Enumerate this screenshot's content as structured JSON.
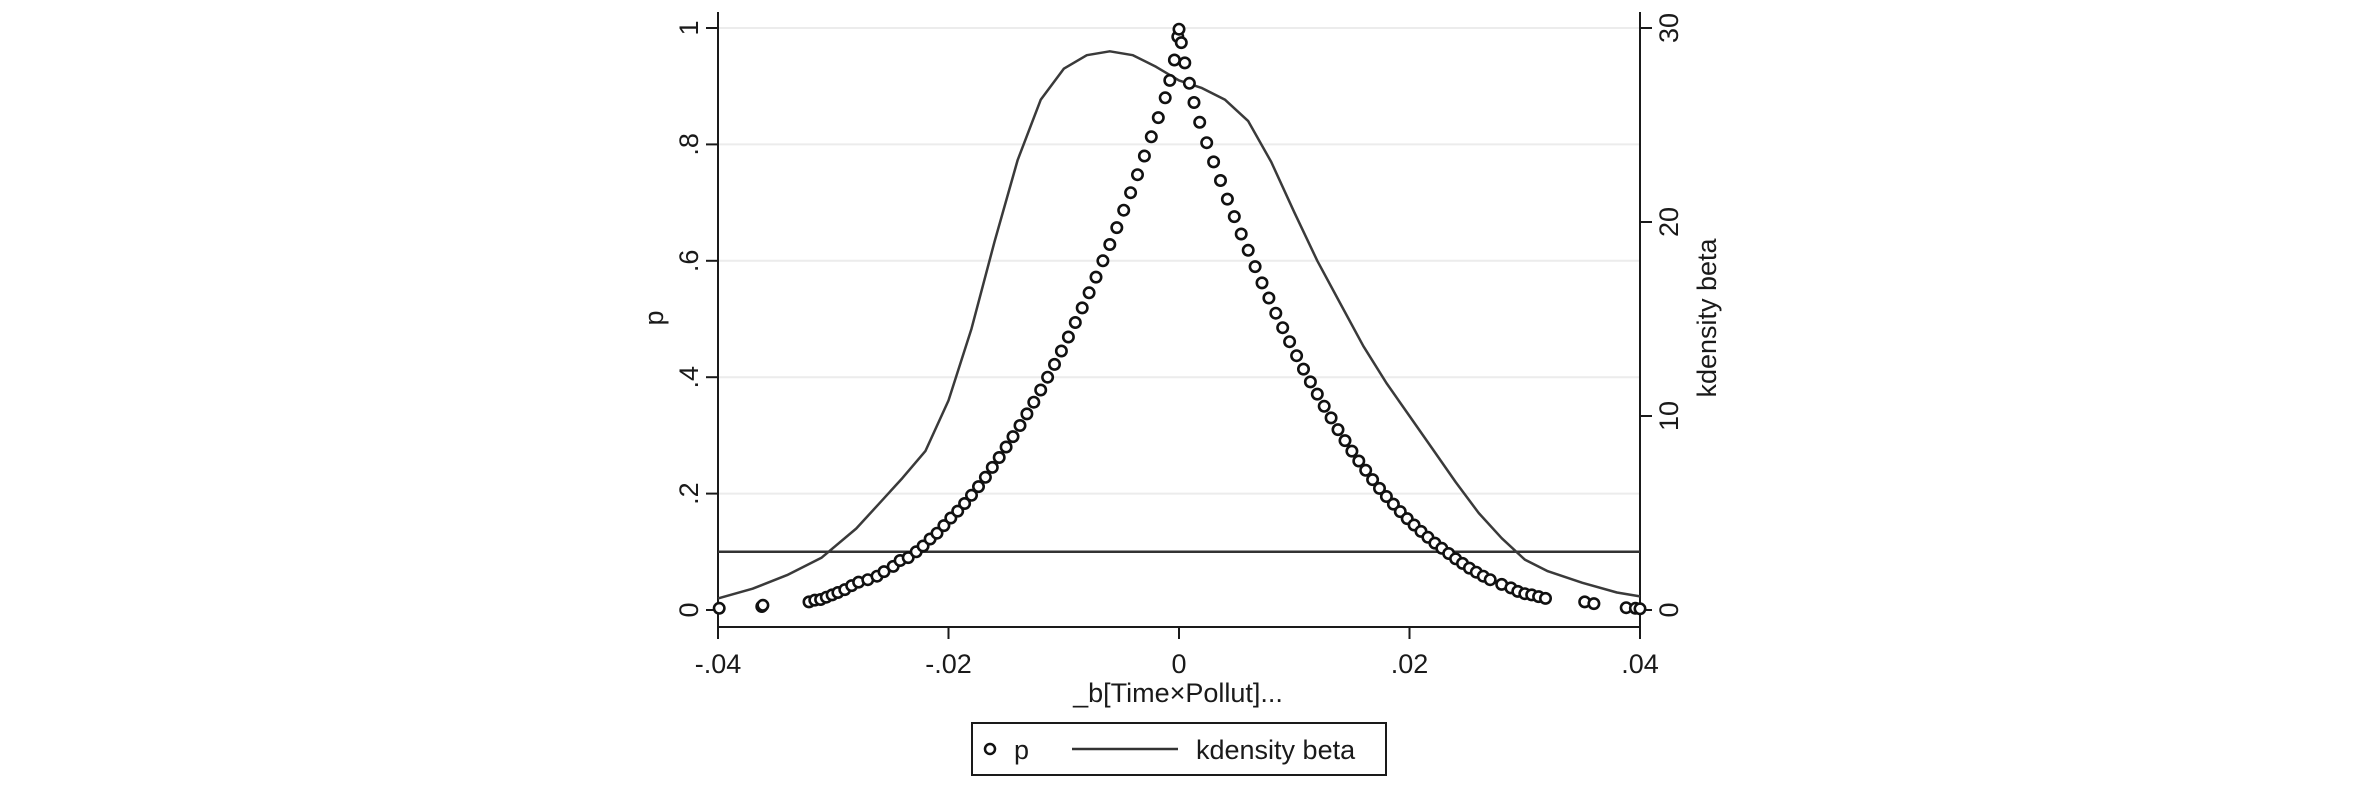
{
  "chart_data": {
    "type": "scatter",
    "xlabel": "_b[Time×Pollut]...",
    "ylabel_left": "p",
    "ylabel_right": "kdensity beta",
    "xlim": [
      -0.04,
      0.04
    ],
    "ylim_left": [
      0,
      1
    ],
    "ylim_right": [
      0,
      30
    ],
    "x_ticks": [
      {
        "value": -0.04,
        "label": "-.04"
      },
      {
        "value": -0.02,
        "label": "-.02"
      },
      {
        "value": 0,
        "label": "0"
      },
      {
        "value": 0.02,
        "label": ".02"
      },
      {
        "value": 0.04,
        "label": ".04"
      }
    ],
    "y_left_ticks": [
      {
        "value": 0,
        "label": "0"
      },
      {
        "value": 0.2,
        "label": ".2"
      },
      {
        "value": 0.4,
        "label": ".4"
      },
      {
        "value": 0.6,
        "label": ".6"
      },
      {
        "value": 0.8,
        "label": ".8"
      },
      {
        "value": 1,
        "label": "1"
      }
    ],
    "y_right_ticks": [
      {
        "value": 0,
        "label": "0"
      },
      {
        "value": 10,
        "label": "10"
      },
      {
        "value": 20,
        "label": "20"
      },
      {
        "value": 30,
        "label": "30"
      }
    ],
    "grid": "horizontal",
    "reference_line": {
      "axis": "y_left",
      "value": 0.1
    },
    "legend": {
      "placement": "bottom",
      "entries": [
        {
          "label": "p",
          "marker": "hollow-circle"
        },
        {
          "label": "kdensity beta",
          "marker": "line"
        }
      ]
    },
    "series": [
      {
        "name": "p",
        "kind": "scatter",
        "axis": "left",
        "points": [
          [
            -0.0399,
            0.003
          ],
          [
            -0.0362,
            0.006
          ],
          [
            -0.0361,
            0.008
          ],
          [
            -0.0321,
            0.014
          ],
          [
            -0.0316,
            0.017
          ],
          [
            -0.0311,
            0.018
          ],
          [
            -0.0306,
            0.022
          ],
          [
            -0.0301,
            0.026
          ],
          [
            -0.0296,
            0.03
          ],
          [
            -0.029,
            0.035
          ],
          [
            -0.0284,
            0.042
          ],
          [
            -0.0278,
            0.048
          ],
          [
            -0.027,
            0.052
          ],
          [
            -0.0262,
            0.058
          ],
          [
            -0.0256,
            0.066
          ],
          [
            -0.0248,
            0.075
          ],
          [
            -0.0242,
            0.085
          ],
          [
            -0.0235,
            0.09
          ],
          [
            -0.0228,
            0.1
          ],
          [
            -0.0222,
            0.11
          ],
          [
            -0.0216,
            0.122
          ],
          [
            -0.021,
            0.132
          ],
          [
            -0.0204,
            0.145
          ],
          [
            -0.0198,
            0.158
          ],
          [
            -0.0192,
            0.17
          ],
          [
            -0.0186,
            0.183
          ],
          [
            -0.018,
            0.197
          ],
          [
            -0.0174,
            0.212
          ],
          [
            -0.0168,
            0.228
          ],
          [
            -0.0162,
            0.245
          ],
          [
            -0.0156,
            0.262
          ],
          [
            -0.015,
            0.28
          ],
          [
            -0.0144,
            0.298
          ],
          [
            -0.0138,
            0.317
          ],
          [
            -0.0132,
            0.337
          ],
          [
            -0.0126,
            0.357
          ],
          [
            -0.012,
            0.378
          ],
          [
            -0.0114,
            0.4
          ],
          [
            -0.0108,
            0.422
          ],
          [
            -0.0102,
            0.445
          ],
          [
            -0.0096,
            0.469
          ],
          [
            -0.009,
            0.494
          ],
          [
            -0.0084,
            0.519
          ],
          [
            -0.0078,
            0.545
          ],
          [
            -0.0072,
            0.572
          ],
          [
            -0.0066,
            0.6
          ],
          [
            -0.006,
            0.628
          ],
          [
            -0.0054,
            0.657
          ],
          [
            -0.0048,
            0.687
          ],
          [
            -0.0042,
            0.717
          ],
          [
            -0.0036,
            0.748
          ],
          [
            -0.003,
            0.78
          ],
          [
            -0.0024,
            0.813
          ],
          [
            -0.0018,
            0.846
          ],
          [
            -0.0012,
            0.88
          ],
          [
            -0.0008,
            0.91
          ],
          [
            -0.0004,
            0.945
          ],
          [
            -0.0001,
            0.985
          ],
          [
            0.0,
            0.998
          ],
          [
            0.0002,
            0.975
          ],
          [
            0.0005,
            0.94
          ],
          [
            0.0009,
            0.905
          ],
          [
            0.0013,
            0.872
          ],
          [
            0.0018,
            0.838
          ],
          [
            0.0024,
            0.803
          ],
          [
            0.003,
            0.77
          ],
          [
            0.0036,
            0.738
          ],
          [
            0.0042,
            0.706
          ],
          [
            0.0048,
            0.676
          ],
          [
            0.0054,
            0.646
          ],
          [
            0.006,
            0.618
          ],
          [
            0.0066,
            0.59
          ],
          [
            0.0072,
            0.562
          ],
          [
            0.0078,
            0.536
          ],
          [
            0.0084,
            0.51
          ],
          [
            0.009,
            0.485
          ],
          [
            0.0096,
            0.461
          ],
          [
            0.0102,
            0.437
          ],
          [
            0.0108,
            0.414
          ],
          [
            0.0114,
            0.392
          ],
          [
            0.012,
            0.371
          ],
          [
            0.0126,
            0.35
          ],
          [
            0.0132,
            0.33
          ],
          [
            0.0138,
            0.31
          ],
          [
            0.0144,
            0.291
          ],
          [
            0.015,
            0.273
          ],
          [
            0.0156,
            0.256
          ],
          [
            0.0162,
            0.24
          ],
          [
            0.0168,
            0.224
          ],
          [
            0.0174,
            0.209
          ],
          [
            0.018,
            0.195
          ],
          [
            0.0186,
            0.182
          ],
          [
            0.0192,
            0.169
          ],
          [
            0.0198,
            0.157
          ],
          [
            0.0204,
            0.146
          ],
          [
            0.021,
            0.135
          ],
          [
            0.0216,
            0.125
          ],
          [
            0.0222,
            0.115
          ],
          [
            0.0228,
            0.106
          ],
          [
            0.0234,
            0.097
          ],
          [
            0.024,
            0.088
          ],
          [
            0.0246,
            0.08
          ],
          [
            0.0252,
            0.072
          ],
          [
            0.0258,
            0.065
          ],
          [
            0.0264,
            0.058
          ],
          [
            0.027,
            0.052
          ],
          [
            0.028,
            0.044
          ],
          [
            0.0288,
            0.038
          ],
          [
            0.0294,
            0.032
          ],
          [
            0.03,
            0.028
          ],
          [
            0.0306,
            0.026
          ],
          [
            0.0312,
            0.023
          ],
          [
            0.0318,
            0.02
          ],
          [
            0.0352,
            0.014
          ],
          [
            0.036,
            0.011
          ],
          [
            0.0388,
            0.004
          ],
          [
            0.0396,
            0.003
          ],
          [
            0.04,
            0.002
          ]
        ]
      },
      {
        "name": "kdensity beta",
        "kind": "line",
        "axis": "right",
        "points": [
          [
            -0.04,
            0.6
          ],
          [
            -0.037,
            1.1
          ],
          [
            -0.034,
            1.8
          ],
          [
            -0.031,
            2.7
          ],
          [
            -0.028,
            4.2
          ],
          [
            -0.026,
            5.5
          ],
          [
            -0.024,
            6.8
          ],
          [
            -0.022,
            8.2
          ],
          [
            -0.02,
            10.8
          ],
          [
            -0.018,
            14.5
          ],
          [
            -0.016,
            19.0
          ],
          [
            -0.014,
            23.2
          ],
          [
            -0.012,
            26.3
          ],
          [
            -0.01,
            27.9
          ],
          [
            -0.008,
            28.6
          ],
          [
            -0.006,
            28.8
          ],
          [
            -0.004,
            28.6
          ],
          [
            -0.002,
            28.0
          ],
          [
            0.0,
            27.3
          ],
          [
            0.002,
            26.9
          ],
          [
            0.004,
            26.3
          ],
          [
            0.006,
            25.2
          ],
          [
            0.008,
            23.1
          ],
          [
            0.01,
            20.5
          ],
          [
            0.012,
            18.0
          ],
          [
            0.014,
            15.8
          ],
          [
            0.016,
            13.6
          ],
          [
            0.018,
            11.7
          ],
          [
            0.02,
            10.0
          ],
          [
            0.022,
            8.3
          ],
          [
            0.024,
            6.6
          ],
          [
            0.026,
            5.0
          ],
          [
            0.028,
            3.7
          ],
          [
            0.03,
            2.6
          ],
          [
            0.032,
            2.0
          ],
          [
            0.035,
            1.4
          ],
          [
            0.038,
            0.9
          ],
          [
            0.04,
            0.7
          ]
        ]
      }
    ]
  }
}
